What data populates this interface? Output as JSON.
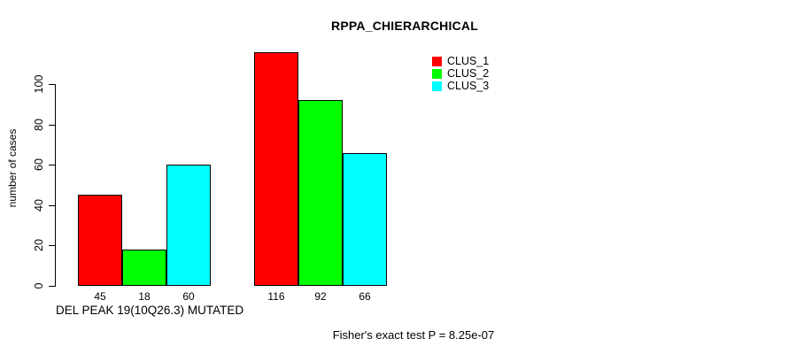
{
  "chart_data": {
    "type": "bar",
    "title": "RPPA_CHIERARCHICAL",
    "ylabel": "number of cases",
    "xlabel": "DEL PEAK 19(10Q26.3) MUTATED",
    "annotation": "Fisher's exact test P = 8.25e-07",
    "yticks": [
      0,
      20,
      40,
      60,
      80,
      100
    ],
    "ylim": [
      0,
      116
    ],
    "grid": false,
    "legend_position": "top-right",
    "n_groups": 2,
    "bar_value_labels_shown": true,
    "series": [
      {
        "name": "CLUS_1",
        "color": "#ff0000",
        "values": [
          45,
          116
        ]
      },
      {
        "name": "CLUS_2",
        "color": "#00ff00",
        "values": [
          18,
          92
        ]
      },
      {
        "name": "CLUS_3",
        "color": "#00ffff",
        "values": [
          60,
          66
        ]
      }
    ],
    "colors": {
      "background": "#ffffff",
      "axis": "#000000",
      "bar_border": "#000000",
      "text": "#000000"
    }
  }
}
